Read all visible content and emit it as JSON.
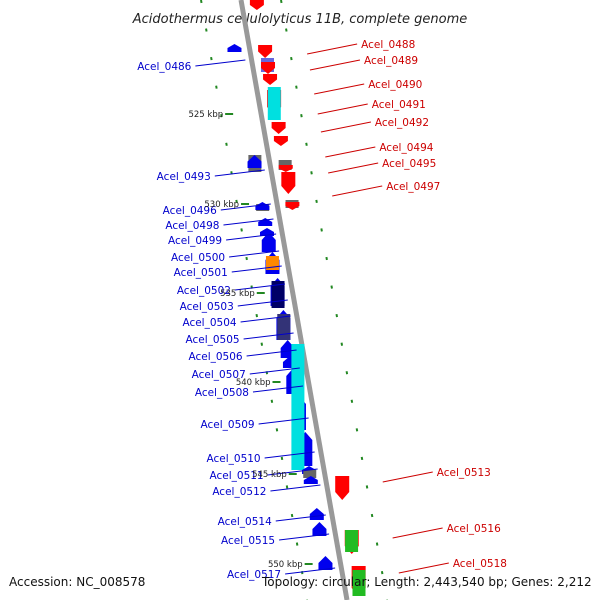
{
  "title": "Acidothermus cellulolyticus 11B, complete genome",
  "footer": {
    "accession": "Accession: NC_008578",
    "topology": "Topology: circular; Length: 2,443,540 bp; Genes: 2,212"
  },
  "colors": {
    "forward_label": "#cc0000",
    "reverse_label": "#0000cc",
    "red": "#ff0000",
    "blue": "#0000ee",
    "navy": "#000066",
    "slate": "#333377",
    "cyan": "#00e0e0",
    "gray": "#666666",
    "orange": "#ff8800",
    "green": "#22bb22",
    "light_blue": "#6666dd",
    "tick_green": "#228822",
    "backbone": "#999999"
  },
  "scale_ticks": [
    "525 kbp",
    "530 kbp",
    "535 kbp",
    "540 kbp",
    "545 kbp",
    "550 kbp"
  ],
  "forward_labels": [
    "Acel_0488",
    "Acel_0489",
    "Acel_0490",
    "Acel_0491",
    "Acel_0492",
    "Acel_0494",
    "Acel_0495",
    "Acel_0497",
    "Acel_0513",
    "Acel_0516",
    "Acel_0518"
  ],
  "reverse_labels": [
    "Acel_0486",
    "Acel_0493",
    "Acel_0496",
    "Acel_0498",
    "Acel_0499",
    "Acel_0500",
    "Acel_0501",
    "Acel_0502",
    "Acel_0503",
    "Acel_0504",
    "Acel_0505",
    "Acel_0506",
    "Acel_0507",
    "Acel_0508",
    "Acel_0509",
    "Acel_0510",
    "Acel_0511",
    "Acel_0512",
    "Acel_0514",
    "Acel_0515",
    "Acel_0517"
  ]
}
